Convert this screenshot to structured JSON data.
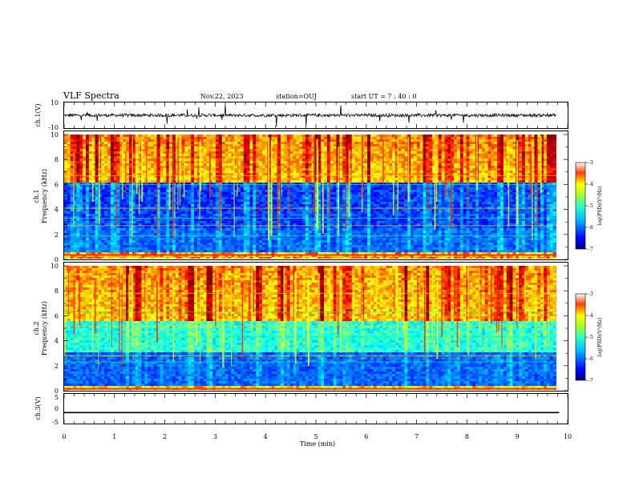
{
  "header": {
    "title": "VLF Spectra",
    "date": "Nov.22, 2023",
    "station": "station=OUJ",
    "start": "start  UT =   7 : 40 : 0"
  },
  "chart_data": [
    {
      "type": "line",
      "panel": "ch1-waveform",
      "ylabel": "ch.1(V)",
      "ylim": [
        -10,
        10
      ],
      "yticks": [
        "10",
        "-10"
      ],
      "x": [
        0,
        10
      ],
      "baseline": 0,
      "note_values": "noisy waveform around 0 V with spikes up to about ±10 V"
    },
    {
      "type": "heatmap",
      "panel": "ch1-spectrogram",
      "ylabel": [
        "ch.1",
        "Frequency (kHz)"
      ],
      "ylim": [
        0,
        10
      ],
      "yticks": [
        "0",
        "2",
        "4",
        "6",
        "8",
        "10"
      ],
      "xlim": [
        0,
        10
      ],
      "colorbar": {
        "label": "log(PSD)(V²/Hz)",
        "range": [
          -7,
          -3
        ],
        "ticks": [
          "-3",
          "-4",
          "-5",
          "-6",
          "-7"
        ]
      }
    },
    {
      "type": "heatmap",
      "panel": "ch2-spectrogram",
      "ylabel": [
        "ch.2",
        "Frequency (kHz)"
      ],
      "ylim": [
        0,
        10
      ],
      "yticks": [
        "0",
        "2",
        "4",
        "6",
        "8",
        "10"
      ],
      "xlim": [
        0,
        10
      ],
      "colorbar": {
        "label": "log(PSD)(V²/Hz)",
        "range": [
          -7,
          -3
        ],
        "ticks": [
          "-3",
          "-4",
          "-5",
          "-6",
          "-7"
        ]
      }
    },
    {
      "type": "line",
      "panel": "ch3-waveform",
      "ylabel": "ch.3(V)",
      "ylim": [
        -5,
        5
      ],
      "yticks": [
        "5",
        "0",
        "-5"
      ],
      "x": [
        0,
        9.83
      ],
      "y": [
        -1.2,
        -1.2
      ]
    }
  ],
  "xaxis": {
    "label": "Time  (min)",
    "ticks": [
      "0",
      "1",
      "2",
      "3",
      "4",
      "5",
      "6",
      "7",
      "8",
      "9",
      "10"
    ],
    "range": [
      0,
      10
    ]
  },
  "colors": {
    "jet": [
      "#000080",
      "#0000ff",
      "#00a0ff",
      "#00ffff",
      "#60ff60",
      "#ffff00",
      "#ff8000",
      "#ff0000",
      "#800000"
    ]
  }
}
